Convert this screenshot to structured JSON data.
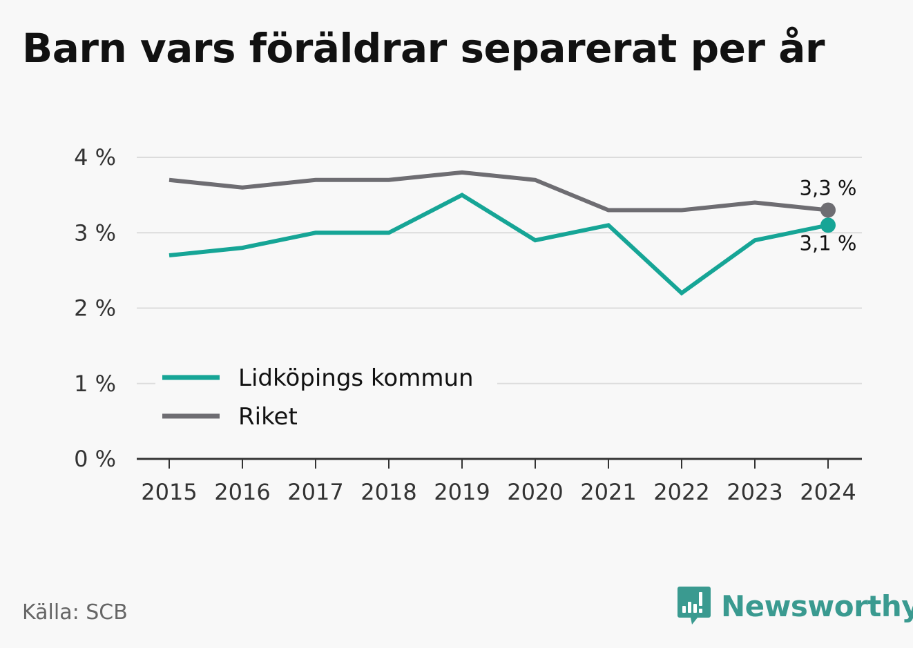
{
  "title": "Barn vars föräldrar separerat per år",
  "source": "Källa: SCB",
  "brand": {
    "name": "Newsworthy",
    "icon": "newsworthy-logo-icon",
    "color": "#3a9a90"
  },
  "chart_data": {
    "type": "line",
    "x": [
      2015,
      2016,
      2017,
      2018,
      2019,
      2020,
      2021,
      2022,
      2023,
      2024
    ],
    "x_tick_labels": [
      "2015",
      "2016",
      "2017",
      "2018",
      "2019",
      "2020",
      "2021",
      "2022",
      "2023",
      "2024"
    ],
    "y_tick_values": [
      0,
      1,
      2,
      3,
      4
    ],
    "y_tick_labels": [
      "0 %",
      "1 %",
      "2 %",
      "3 %",
      "4 %"
    ],
    "ylim": [
      0,
      4
    ],
    "grid": true,
    "legend_position": "bottom-left",
    "series": [
      {
        "name": "Lidköpings kommun",
        "color": "#16a596",
        "values": [
          2.7,
          2.8,
          3.0,
          3.0,
          3.5,
          2.9,
          3.1,
          2.2,
          2.9,
          3.1
        ],
        "end_label": "3,1 %"
      },
      {
        "name": "Riket",
        "color": "#6e6d72",
        "values": [
          3.7,
          3.6,
          3.7,
          3.7,
          3.8,
          3.7,
          3.3,
          3.3,
          3.4,
          3.3
        ],
        "end_label": "3,3 %"
      }
    ]
  }
}
